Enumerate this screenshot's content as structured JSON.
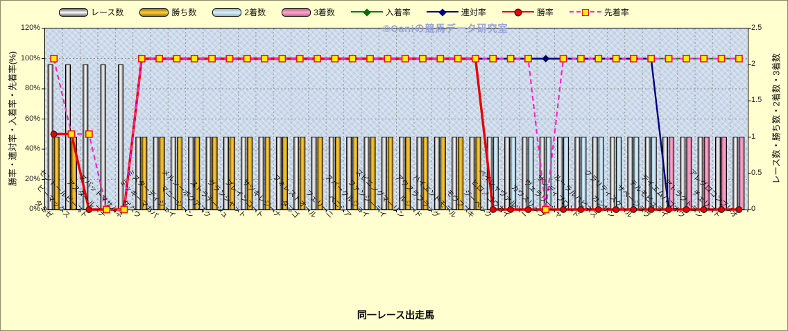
{
  "watermark": "©Caniの競馬データ研究室",
  "left_axis": {
    "title": "勝率・連対率・入着率・先着率(%)",
    "ticks": [
      "120%",
      "100%",
      "80%",
      "60%",
      "40%",
      "20%",
      "0%"
    ]
  },
  "right_axis": {
    "title": "レース数・勝ち数・2着数・3着数",
    "ticks": [
      "2.5",
      "2",
      "1.5",
      "1",
      "0.5",
      "0"
    ]
  },
  "x_axis": {
    "title": "同一レース出走馬"
  },
  "legend": [
    {
      "label": "レース数",
      "swatch": "bar",
      "palette": "race"
    },
    {
      "label": "勝ち数",
      "swatch": "bar",
      "palette": "win"
    },
    {
      "label": "2着数",
      "swatch": "bar",
      "palette": "second"
    },
    {
      "label": "3着数",
      "swatch": "bar",
      "palette": "third"
    },
    {
      "label": "入着率",
      "swatch": "line",
      "series": "入着率"
    },
    {
      "label": "連対率",
      "swatch": "line",
      "series": "連対率"
    },
    {
      "label": "勝率",
      "swatch": "line",
      "series": "勝率"
    },
    {
      "label": "先着率",
      "swatch": "line",
      "series": "先着率"
    }
  ],
  "chart_data": {
    "type": "combo-bar-line",
    "title": "",
    "xlabel": "同一レース出走馬",
    "left_ylabel": "勝率・連対率・入着率・先着率(%)",
    "right_ylabel": "レース数・勝ち数・2着数・3着数",
    "left_axis_range": [
      0,
      120
    ],
    "right_axis_range": [
      0,
      2.5
    ],
    "grid": true,
    "legend_position": "top",
    "categories": [
      "タミゼ",
      "ビーマックス",
      "セントールビースト",
      "アスタールフナ",
      "ズバットマサムネ",
      "ゲクウ",
      "ミッキーマカパ",
      "ミスターディジェイ",
      "マニーシーン",
      "メルシーボクアスク",
      "ストラテージュ",
      "グランシャット",
      "プレインコート",
      "サツキレジーナ",
      "タマゴ",
      "フォレストオール",
      "フェリーニ",
      "ベニシア",
      "スパークルジョイ",
      "ファンシーデイ",
      "スピニングマーリン",
      "ルシード",
      "アウスラフラッグ",
      "ハイエンドモデル",
      "モウフブキ",
      "ジーベック",
      "ヒロノゴウカイ",
      "ペイシャヴァルツー",
      "カウスリップ",
      "ヴェラリーシャ",
      "サンディブロンド",
      "ルーラルハピネス",
      "カンザン",
      "クラリティスケール",
      "サベージラヴ",
      "テルモピュライ",
      "テイエムバゴオウ",
      "アトラクトラン",
      "チェリスト",
      "アレグロコンブリオ"
    ],
    "palettes": {
      "race": {
        "edge": "#6A6A6A",
        "center": "#FFFFFF"
      },
      "win": {
        "edge": "#A87800",
        "center": "#FFCE3C"
      },
      "second": {
        "edge": "#8FB6C9",
        "center": "#DDF1FB"
      },
      "third": {
        "edge": "#C9628C",
        "center": "#FFA8CC"
      }
    },
    "bar_series": [
      {
        "name": "レース数",
        "axis": "right",
        "palette": "race",
        "values": [
          2,
          2,
          2,
          2,
          2,
          1,
          1,
          1,
          1,
          1,
          1,
          1,
          1,
          1,
          1,
          1,
          1,
          1,
          1,
          1,
          1,
          1,
          1,
          1,
          1,
          1,
          1,
          1,
          1,
          1,
          1,
          1,
          1,
          1,
          1,
          1,
          1,
          1,
          1,
          1
        ]
      },
      {
        "name": "勝ち数",
        "axis": "right",
        "palette": "win",
        "values": [
          1,
          1,
          0,
          0,
          0,
          1,
          1,
          1,
          1,
          1,
          1,
          1,
          1,
          1,
          1,
          1,
          1,
          1,
          1,
          1,
          1,
          1,
          1,
          1,
          1,
          0,
          0,
          0,
          0,
          0,
          0,
          0,
          0,
          0,
          0,
          0,
          0,
          0,
          0,
          0
        ]
      },
      {
        "name": "2着数",
        "axis": "right",
        "palette": "second",
        "values": [
          0,
          0,
          0,
          0,
          0,
          0,
          0,
          0,
          0,
          0,
          0,
          0,
          0,
          0,
          0,
          0,
          0,
          0,
          0,
          0,
          0,
          0,
          0,
          0,
          0,
          1,
          1,
          1,
          1,
          1,
          1,
          1,
          1,
          1,
          1,
          0,
          0,
          0,
          0,
          0
        ]
      },
      {
        "name": "3着数",
        "axis": "right",
        "palette": "third",
        "values": [
          0,
          0,
          0,
          0,
          0,
          0,
          0,
          0,
          0,
          0,
          0,
          0,
          0,
          0,
          0,
          0,
          0,
          0,
          0,
          0,
          0,
          0,
          0,
          0,
          0,
          0,
          0,
          0,
          0,
          0,
          0,
          0,
          0,
          0,
          0,
          1,
          1,
          1,
          1,
          1
        ]
      }
    ],
    "line_series": [
      {
        "name": "入着率",
        "axis": "left",
        "color": "#008000",
        "width": 2,
        "dash": null,
        "marker": "diamond",
        "marker_fill": "#007000",
        "marker_stroke": "#003800",
        "values": [
          50,
          50,
          0,
          0,
          0,
          100,
          100,
          100,
          100,
          100,
          100,
          100,
          100,
          100,
          100,
          100,
          100,
          100,
          100,
          100,
          100,
          100,
          100,
          100,
          100,
          100,
          100,
          100,
          100,
          100,
          100,
          100,
          100,
          100,
          100,
          100,
          100,
          100,
          100,
          100
        ]
      },
      {
        "name": "連対率",
        "axis": "left",
        "color": "#00007E",
        "width": 2.4,
        "dash": null,
        "marker": "diamond",
        "marker_fill": "#00007E",
        "marker_stroke": "#000040",
        "values": [
          50,
          50,
          0,
          0,
          0,
          100,
          100,
          100,
          100,
          100,
          100,
          100,
          100,
          100,
          100,
          100,
          100,
          100,
          100,
          100,
          100,
          100,
          100,
          100,
          100,
          100,
          100,
          100,
          100,
          100,
          100,
          100,
          100,
          100,
          100,
          0,
          0,
          0,
          0,
          0
        ]
      },
      {
        "name": "勝率",
        "axis": "left",
        "color": "#E80000",
        "width": 3.4,
        "dash": null,
        "marker": "circle",
        "marker_fill": "#E80000",
        "marker_stroke": "#1a1a1a",
        "values": [
          50,
          50,
          0,
          0,
          0,
          100,
          100,
          100,
          100,
          100,
          100,
          100,
          100,
          100,
          100,
          100,
          100,
          100,
          100,
          100,
          100,
          100,
          100,
          100,
          100,
          0,
          0,
          0,
          0,
          0,
          0,
          0,
          0,
          0,
          0,
          0,
          0,
          0,
          0,
          0
        ]
      },
      {
        "name": "先着率",
        "axis": "left",
        "color": "#FF22CC",
        "width": 2.2,
        "dash": "7 5",
        "marker": "square",
        "marker_fill": "#FFEE00",
        "marker_stroke": "#EE1111",
        "values": [
          100,
          50,
          50,
          0,
          0,
          100,
          100,
          100,
          100,
          100,
          100,
          100,
          100,
          100,
          100,
          100,
          100,
          100,
          100,
          100,
          100,
          100,
          100,
          100,
          100,
          100,
          100,
          100,
          0,
          100,
          100,
          100,
          100,
          100,
          100,
          100,
          100,
          100,
          100,
          100
        ]
      }
    ]
  }
}
